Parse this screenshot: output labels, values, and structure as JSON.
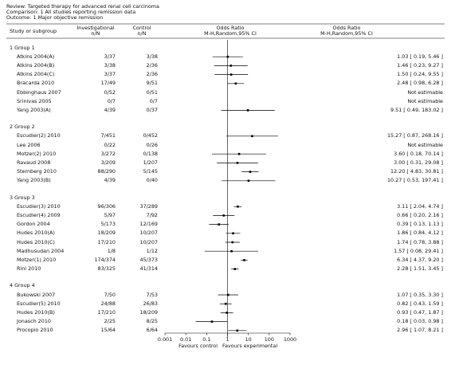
{
  "header": {
    "review": "Review:  Targeted therapy for advanced renal cell carcinoma",
    "comparison": "Comparison:  1 All studies reporting remission data",
    "outcome": "Outcome:  1 Major objective remission"
  },
  "columns": {
    "study": "Study or subgroup",
    "investigational": "Investigational",
    "investigational_sub": "n/N",
    "control": "Control",
    "control_sub": "n/N",
    "plot_title": "Odds Ratio",
    "plot_sub": "M-H,Random,95% CI",
    "or_title": "Odds Ratio",
    "or_sub": "M-H,Random,95% CI"
  },
  "colors": {
    "text": "#111111",
    "line": "#000000"
  },
  "chart_data": {
    "type": "forest",
    "xscale": "log",
    "xlim": [
      0.001,
      1000
    ],
    "xticks": [
      "0.001",
      "0.01",
      "0.1",
      "1",
      "10",
      "100",
      "1000"
    ],
    "xlabel_left": "Favours control",
    "xlabel_right": "Favours experimental",
    "groups": [
      {
        "label": "1 Group 1",
        "studies": [
          {
            "name": "Atkins 2004(A)",
            "inv": "3/37",
            "ctl": "3/38",
            "or": 1.03,
            "lo": 0.19,
            "hi": 5.46,
            "text": "1.03 [ 0.19, 5.46 ]"
          },
          {
            "name": "Atkins 2004(B)",
            "inv": "3/38",
            "ctl": "2/36",
            "or": 1.46,
            "lo": 0.23,
            "hi": 9.27,
            "text": "1.46 [ 0.23, 9.27 ]"
          },
          {
            "name": "Atkins 2004(C)",
            "inv": "3/37",
            "ctl": "2/36",
            "or": 1.5,
            "lo": 0.24,
            "hi": 9.55,
            "text": "1.50 [ 0.24, 9.55 ]"
          },
          {
            "name": "Bracarda 2010",
            "inv": "17/49",
            "ctl": "9/51",
            "or": 2.48,
            "lo": 0.98,
            "hi": 6.28,
            "text": "2.48 [ 0.98, 6.28 ]"
          },
          {
            "name": "Ebbinghaus 2007",
            "inv": "0/52",
            "ctl": "0/51",
            "or": null,
            "lo": null,
            "hi": null,
            "text": "Not estimable"
          },
          {
            "name": "Srinivas 2005",
            "inv": "0/7",
            "ctl": "0/7",
            "or": null,
            "lo": null,
            "hi": null,
            "text": "Not estimable"
          },
          {
            "name": "Yang 2003(A)",
            "inv": "4/39",
            "ctl": "0/37",
            "or": 9.51,
            "lo": 0.49,
            "hi": 183.02,
            "text": "9.51 [ 0.49, 183.02 ]"
          }
        ]
      },
      {
        "label": "2 Group 2",
        "studies": [
          {
            "name": "Escudier(2) 2010",
            "inv": "7/451",
            "ctl": "0/452",
            "or": 15.27,
            "lo": 0.87,
            "hi": 268.16,
            "text": "15.27 [ 0.87, 268.16 ]"
          },
          {
            "name": "Lee 2006",
            "inv": "0/22",
            "ctl": "0/26",
            "or": null,
            "lo": null,
            "hi": null,
            "text": "Not estimable"
          },
          {
            "name": "Motzer(2) 2010",
            "inv": "3/272",
            "ctl": "0/138",
            "or": 3.6,
            "lo": 0.18,
            "hi": 70.14,
            "text": "3.60 [ 0.18, 70.14 ]"
          },
          {
            "name": "Ravaud 2008",
            "inv": "3/209",
            "ctl": "1/207",
            "or": 3.0,
            "lo": 0.31,
            "hi": 29.08,
            "text": "3.00 [ 0.31, 29.08 ]"
          },
          {
            "name": "Sternberg 2010",
            "inv": "88/290",
            "ctl": "5/145",
            "or": 12.2,
            "lo": 4.83,
            "hi": 30.81,
            "text": "12.20 [ 4.83, 30.81 ]"
          },
          {
            "name": "Yang 2003(B)",
            "inv": "4/39",
            "ctl": "0/40",
            "or": 10.27,
            "lo": 0.53,
            "hi": 197.41,
            "text": "10.27 [ 0.53, 197.41 ]"
          }
        ]
      },
      {
        "label": "3 Group 3",
        "studies": [
          {
            "name": "Escudier(3) 2010",
            "inv": "96/306",
            "ctl": "37/289",
            "or": 3.11,
            "lo": 2.04,
            "hi": 4.74,
            "text": "3.11 [ 2.04, 4.74 ]"
          },
          {
            "name": "Escudier(4) 2009",
            "inv": "5/97",
            "ctl": "7/92",
            "or": 0.66,
            "lo": 0.2,
            "hi": 2.16,
            "text": "0.66 [ 0.20, 2.16 ]"
          },
          {
            "name": "Gordon 2004",
            "inv": "5/173",
            "ctl": "12/169",
            "or": 0.39,
            "lo": 0.13,
            "hi": 1.13,
            "text": "0.39 [ 0.13, 1.13 ]"
          },
          {
            "name": "Hudes 2010(A)",
            "inv": "18/209",
            "ctl": "10/207",
            "or": 1.86,
            "lo": 0.84,
            "hi": 4.12,
            "text": "1.86 [ 0.84, 4.12 ]"
          },
          {
            "name": "Hudes 2010(C)",
            "inv": "17/210",
            "ctl": "10/207",
            "or": 1.74,
            "lo": 0.78,
            "hi": 3.88,
            "text": "1.74 [ 0.78, 3.88 ]"
          },
          {
            "name": "Madhusudan 2004",
            "inv": "1/8",
            "ctl": "1/12",
            "or": 1.57,
            "lo": 0.08,
            "hi": 29.41,
            "text": "1.57 [ 0.08, 29.41 ]"
          },
          {
            "name": "Motzer(1) 2010",
            "inv": "174/374",
            "ctl": "45/373",
            "or": 6.34,
            "lo": 4.37,
            "hi": 9.2,
            "text": "6.34 [ 4.37, 9.20 ]"
          },
          {
            "name": "Rini 2010",
            "inv": "83/325",
            "ctl": "41/314",
            "or": 2.28,
            "lo": 1.51,
            "hi": 3.45,
            "text": "2.28 [ 1.51, 3.45 ]"
          }
        ]
      },
      {
        "label": "4 Group 4",
        "studies": [
          {
            "name": "Bukowski 2007",
            "inv": "7/50",
            "ctl": "7/53",
            "or": 1.07,
            "lo": 0.35,
            "hi": 3.3,
            "text": "1.07 [ 0.35, 3.30 ]"
          },
          {
            "name": "Escudier(5) 2010",
            "inv": "24/88",
            "ctl": "26/83",
            "or": 0.82,
            "lo": 0.43,
            "hi": 1.59,
            "text": "0.82 [ 0.43, 1.59 ]"
          },
          {
            "name": "Hudes 2010(B)",
            "inv": "17/210",
            "ctl": "18/209",
            "or": 0.93,
            "lo": 0.47,
            "hi": 1.87,
            "text": "0.93 [ 0.47, 1.87 ]"
          },
          {
            "name": "Jonasch 2010",
            "inv": "2/25",
            "ctl": "8/25",
            "or": 0.18,
            "lo": 0.03,
            "hi": 0.98,
            "text": "0.18 [ 0.03, 0.98 ]"
          },
          {
            "name": "Procopio 2010",
            "inv": "15/64",
            "ctl": "6/64",
            "or": 2.96,
            "lo": 1.07,
            "hi": 8.21,
            "text": "2.96 [ 1.07, 8.21 ]"
          }
        ]
      }
    ]
  }
}
